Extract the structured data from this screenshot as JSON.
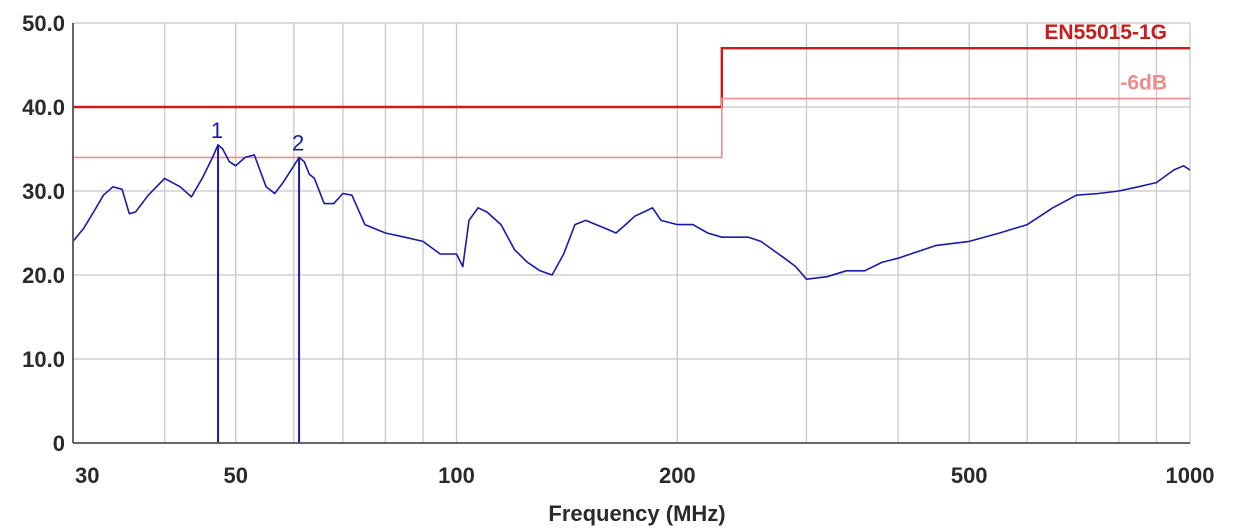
{
  "chart_data": {
    "type": "line",
    "xlabel": "Frequency (MHz)",
    "ylabel": "",
    "x_scale": "log",
    "xlim": [
      30,
      1000
    ],
    "ylim": [
      0,
      50
    ],
    "grid": true,
    "x_ticks": [
      {
        "value": 30,
        "label": "30"
      },
      {
        "value": 50,
        "label": "50"
      },
      {
        "value": 100,
        "label": "100"
      },
      {
        "value": 200,
        "label": "200"
      },
      {
        "value": 500,
        "label": "500"
      },
      {
        "value": 1000,
        "label": "1000"
      }
    ],
    "x_grid": [
      30,
      40,
      50,
      60,
      70,
      80,
      90,
      100,
      200,
      300,
      400,
      500,
      600,
      700,
      800,
      900,
      1000
    ],
    "y_ticks": [
      {
        "value": 0,
        "label": "0"
      },
      {
        "value": 10,
        "label": "10.0"
      },
      {
        "value": 20,
        "label": "20.0"
      },
      {
        "value": 30,
        "label": "30.0"
      },
      {
        "value": 40,
        "label": "40.0"
      },
      {
        "value": 50,
        "label": "50.0"
      }
    ],
    "limit_lines": [
      {
        "name": "EN55015-1G",
        "color": "#cc1a1a",
        "points": [
          [
            30,
            40
          ],
          [
            230,
            40
          ],
          [
            230,
            47
          ],
          [
            1000,
            47
          ]
        ]
      },
      {
        "name": "-6dB",
        "color": "#ee8c8c",
        "points": [
          [
            30,
            34
          ],
          [
            230,
            34
          ],
          [
            230,
            41
          ],
          [
            1000,
            41
          ]
        ]
      }
    ],
    "series": [
      {
        "color": "#1a1aa8",
        "points": [
          [
            30,
            24
          ],
          [
            31,
            25.5
          ],
          [
            32,
            27.5
          ],
          [
            33,
            29.5
          ],
          [
            34,
            30.5
          ],
          [
            35,
            30.2
          ],
          [
            35.8,
            27.3
          ],
          [
            36.5,
            27.5
          ],
          [
            38,
            29.5
          ],
          [
            40,
            31.5
          ],
          [
            42,
            30.5
          ],
          [
            43.5,
            29.3
          ],
          [
            45,
            31.5
          ],
          [
            46.5,
            34
          ],
          [
            47.3,
            35.5
          ],
          [
            48,
            35
          ],
          [
            49,
            33.5
          ],
          [
            50,
            33
          ],
          [
            51.5,
            34
          ],
          [
            53,
            34.3
          ],
          [
            55,
            30.5
          ],
          [
            56.5,
            29.7
          ],
          [
            58,
            31
          ],
          [
            60,
            33
          ],
          [
            61,
            34
          ],
          [
            62,
            33.5
          ],
          [
            63,
            32
          ],
          [
            64,
            31.5
          ],
          [
            66,
            28.5
          ],
          [
            68,
            28.5
          ],
          [
            70,
            29.7
          ],
          [
            72,
            29.5
          ],
          [
            75,
            26
          ],
          [
            80,
            25
          ],
          [
            85,
            24.5
          ],
          [
            90,
            24
          ],
          [
            95,
            22.5
          ],
          [
            100,
            22.5
          ],
          [
            102,
            21
          ],
          [
            104,
            26.5
          ],
          [
            107,
            28
          ],
          [
            110,
            27.5
          ],
          [
            115,
            26
          ],
          [
            120,
            23
          ],
          [
            125,
            21.5
          ],
          [
            130,
            20.5
          ],
          [
            135,
            20
          ],
          [
            140,
            22.5
          ],
          [
            145,
            26
          ],
          [
            150,
            26.5
          ],
          [
            155,
            26
          ],
          [
            160,
            25.5
          ],
          [
            165,
            25
          ],
          [
            170,
            26
          ],
          [
            175,
            27
          ],
          [
            180,
            27.5
          ],
          [
            185,
            28
          ],
          [
            190,
            26.5
          ],
          [
            200,
            26
          ],
          [
            210,
            26
          ],
          [
            220,
            25
          ],
          [
            230,
            24.5
          ],
          [
            250,
            24.5
          ],
          [
            260,
            24
          ],
          [
            280,
            22
          ],
          [
            290,
            21
          ],
          [
            300,
            19.5
          ],
          [
            320,
            19.8
          ],
          [
            340,
            20.5
          ],
          [
            360,
            20.5
          ],
          [
            380,
            21.5
          ],
          [
            400,
            22
          ],
          [
            450,
            23.5
          ],
          [
            500,
            24
          ],
          [
            550,
            25
          ],
          [
            600,
            26
          ],
          [
            650,
            28
          ],
          [
            700,
            29.5
          ],
          [
            750,
            29.7
          ],
          [
            800,
            30
          ],
          [
            850,
            30.5
          ],
          [
            900,
            31
          ],
          [
            950,
            32.5
          ],
          [
            980,
            33
          ],
          [
            1000,
            32.5
          ]
        ]
      }
    ],
    "markers": [
      {
        "label": "1",
        "x": 47.3,
        "y": 35.5
      },
      {
        "label": "2",
        "x": 61,
        "y": 34
      }
    ],
    "colors": {
      "trace": "#1a1aa8",
      "limit": "#cc1a1a",
      "limit_minus_6db": "#ee8c8c",
      "grid": "#c8c8c8",
      "axis": "#555555",
      "tick_text": "#2a2a2a"
    }
  }
}
